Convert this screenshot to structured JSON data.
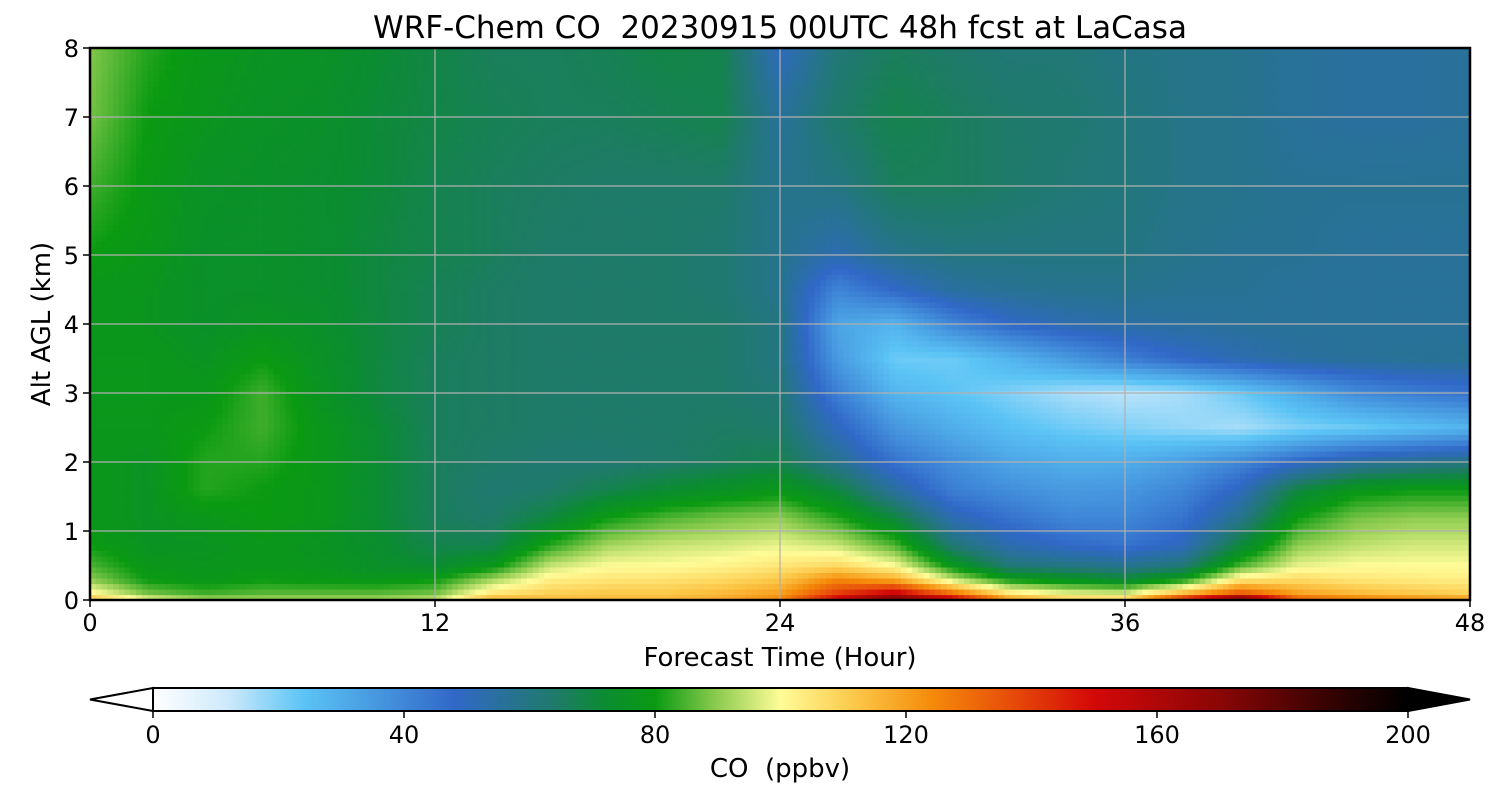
{
  "chart_data": {
    "type": "heatmap",
    "title": "WRF-Chem CO  20230915 00UTC 48h fcst at LaCasa",
    "xlabel": "Forecast Time (Hour)",
    "ylabel": "Alt AGL (km)",
    "xlim": [
      0,
      48
    ],
    "ylim": [
      0,
      8
    ],
    "xticks": [
      "0",
      "12",
      "24",
      "36",
      "48"
    ],
    "yticks": [
      "0",
      "1",
      "2",
      "3",
      "4",
      "5",
      "6",
      "7",
      "8"
    ],
    "grid": true,
    "colorbar": {
      "label": "CO  (ppbv)",
      "range": [
        0,
        200
      ],
      "ticks": [
        "0",
        "40",
        "80",
        "120",
        "160",
        "200"
      ],
      "extend": "both",
      "colormap": [
        [
          0,
          "#ffffff"
        ],
        [
          12,
          "#cde9fb"
        ],
        [
          24,
          "#5bc4f5"
        ],
        [
          48,
          "#3168c8"
        ],
        [
          64,
          "#1f7a6a"
        ],
        [
          72,
          "#0b8c32"
        ],
        [
          80,
          "#0a9a12"
        ],
        [
          90,
          "#8ecc50"
        ],
        [
          100,
          "#fffc98"
        ],
        [
          112,
          "#fcc748"
        ],
        [
          124,
          "#f58b0a"
        ],
        [
          136,
          "#e8500a"
        ],
        [
          150,
          "#d40808"
        ],
        [
          170,
          "#8a0606"
        ],
        [
          190,
          "#2a0202"
        ],
        [
          200,
          "#000000"
        ]
      ],
      "low_color": "#ffffff",
      "high_color": "#000000"
    },
    "x_hours": [
      0,
      2,
      4,
      6,
      8,
      10,
      12,
      14,
      16,
      18,
      20,
      22,
      24,
      26,
      28,
      30,
      32,
      34,
      36,
      38,
      40,
      42,
      44,
      46,
      48
    ],
    "z_levels_km": [
      0,
      0.1,
      0.3,
      0.5,
      0.8,
      1.2,
      1.6,
      2.0,
      2.5,
      3.0,
      3.5,
      4.0,
      4.5,
      5.0,
      6.0,
      7.0,
      8.0
    ],
    "values_ppbv": [
      [
        115,
        100,
        92,
        92,
        92,
        92,
        95,
        118,
        115,
        115,
        115,
        118,
        125,
        155,
        180,
        160,
        122,
        112,
        112,
        150,
        185,
        135,
        128,
        125,
        122
      ],
      [
        102,
        88,
        84,
        86,
        86,
        86,
        88,
        105,
        110,
        112,
        112,
        115,
        120,
        140,
        155,
        130,
        105,
        98,
        96,
        115,
        135,
        120,
        115,
        112,
        110
      ],
      [
        90,
        80,
        78,
        80,
        79,
        78,
        80,
        92,
        103,
        105,
        106,
        108,
        112,
        125,
        118,
        95,
        80,
        76,
        72,
        80,
        105,
        108,
        105,
        104,
        103
      ],
      [
        85,
        78,
        77,
        78,
        77,
        74,
        72,
        78,
        95,
        100,
        100,
        102,
        105,
        108,
        100,
        78,
        62,
        60,
        58,
        62,
        85,
        98,
        100,
        100,
        100
      ],
      [
        80,
        76,
        76,
        78,
        76,
        73,
        68,
        68,
        82,
        92,
        95,
        96,
        98,
        95,
        85,
        62,
        52,
        48,
        45,
        50,
        70,
        90,
        94,
        96,
        96
      ],
      [
        78,
        76,
        78,
        80,
        78,
        72,
        66,
        64,
        70,
        80,
        85,
        88,
        90,
        82,
        70,
        52,
        45,
        40,
        40,
        45,
        58,
        80,
        88,
        90,
        90
      ],
      [
        78,
        76,
        82,
        80,
        78,
        72,
        66,
        63,
        64,
        68,
        72,
        75,
        78,
        70,
        55,
        42,
        38,
        35,
        36,
        40,
        50,
        70,
        78,
        80,
        80
      ],
      [
        78,
        76,
        82,
        82,
        78,
        72,
        66,
        64,
        63,
        63,
        64,
        66,
        68,
        58,
        45,
        38,
        32,
        30,
        30,
        34,
        40,
        48,
        55,
        58,
        60
      ],
      [
        78,
        78,
        80,
        84,
        78,
        72,
        66,
        65,
        64,
        64,
        64,
        65,
        64,
        50,
        36,
        30,
        25,
        22,
        20,
        18,
        16,
        20,
        22,
        25,
        28
      ],
      [
        78,
        78,
        78,
        84,
        76,
        70,
        66,
        65,
        64,
        64,
        64,
        64,
        62,
        42,
        28,
        24,
        20,
        16,
        14,
        16,
        22,
        30,
        38,
        42,
        45
      ],
      [
        78,
        78,
        76,
        80,
        75,
        70,
        66,
        65,
        64,
        64,
        64,
        64,
        60,
        35,
        22,
        22,
        28,
        35,
        42,
        48,
        52,
        55,
        56,
        57,
        57
      ],
      [
        78,
        77,
        74,
        76,
        74,
        70,
        67,
        65,
        64,
        64,
        64,
        64,
        60,
        32,
        28,
        40,
        48,
        52,
        54,
        55,
        56,
        56,
        56,
        56,
        56
      ],
      [
        78,
        77,
        74,
        74,
        73,
        70,
        67,
        65,
        64,
        64,
        64,
        63,
        58,
        40,
        48,
        55,
        57,
        58,
        58,
        57,
        57,
        56,
        56,
        56,
        56
      ],
      [
        80,
        78,
        74,
        74,
        73,
        70,
        68,
        66,
        64,
        64,
        64,
        63,
        58,
        52,
        58,
        60,
        60,
        60,
        60,
        58,
        57,
        57,
        56,
        56,
        56
      ],
      [
        84,
        79,
        75,
        74,
        73,
        71,
        68,
        66,
        65,
        64,
        64,
        64,
        58,
        60,
        66,
        66,
        64,
        62,
        61,
        59,
        58,
        57,
        57,
        57,
        57
      ],
      [
        88,
        80,
        77,
        75,
        74,
        71,
        69,
        67,
        66,
        66,
        67,
        68,
        56,
        64,
        68,
        66,
        64,
        63,
        61,
        59,
        58,
        56,
        55,
        55,
        56
      ],
      [
        89,
        82,
        78,
        76,
        75,
        72,
        69,
        66,
        66,
        67,
        69,
        68,
        50,
        62,
        66,
        64,
        62,
        62,
        60,
        59,
        58,
        56,
        55,
        55,
        56
      ]
    ]
  }
}
